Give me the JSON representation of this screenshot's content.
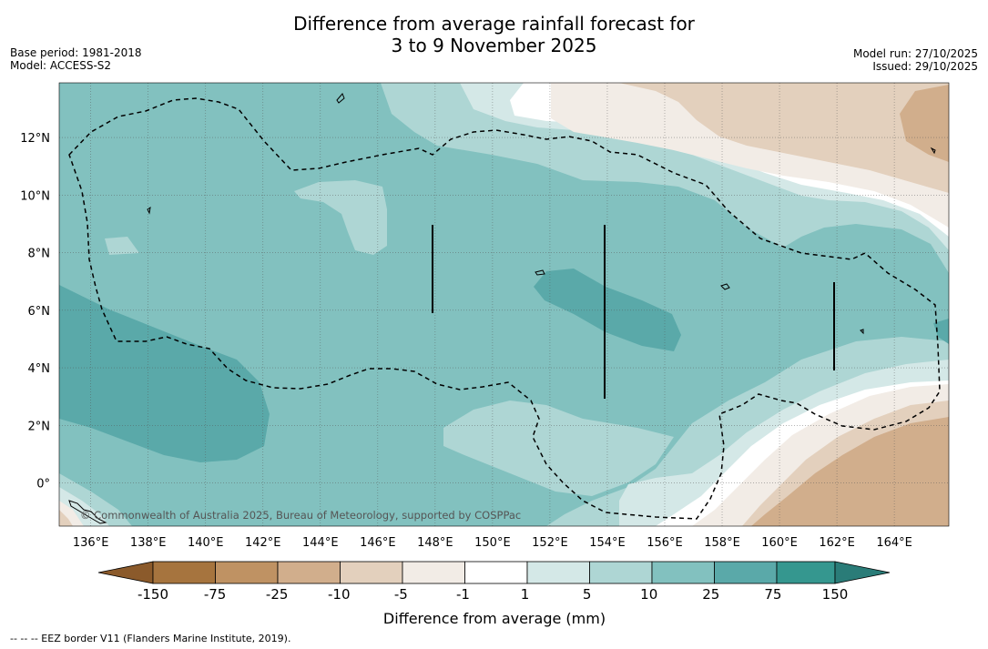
{
  "title": {
    "line1": "Difference from average rainfall forecast for",
    "line2": "3 to 9 November 2025"
  },
  "meta_left": {
    "base_period": "Base period: 1981-2018",
    "model": "Model: ACCESS-S2"
  },
  "meta_right": {
    "model_run": "Model run: 27/10/2025",
    "issued": "Issued: 29/10/2025"
  },
  "map": {
    "copyright": "© Commonwealth of Australia 2025, Bureau of Meteorology, supported by COSPPac",
    "lon_labels": [
      "136°E",
      "138°E",
      "140°E",
      "142°E",
      "144°E",
      "146°E",
      "148°E",
      "150°E",
      "152°E",
      "154°E",
      "156°E",
      "158°E",
      "160°E",
      "162°E",
      "164°E"
    ],
    "lat_labels": [
      "12°N",
      "10°N",
      "8°N",
      "6°N",
      "4°N",
      "2°N",
      "0°"
    ],
    "lon_range": [
      134.9,
      165.9
    ],
    "lat_range": [
      -1.5,
      13.9
    ]
  },
  "legend": {
    "title": "Difference from average (mm)",
    "tick_labels": [
      "-150",
      "-75",
      "-25",
      "-10",
      "-5",
      "-1",
      "1",
      "5",
      "10",
      "25",
      "75",
      "150"
    ],
    "colors": {
      "low_arrow": "#8b5a2b",
      "c_m150_m75": "#a6743e",
      "c_m75_m25": "#bf9263",
      "c_m25_m10": "#d1ae8c",
      "c_m10_m5": "#e3d0bd",
      "c_m5_m1": "#f2ece6",
      "c_m1_1": "#ffffff",
      "c_1_5": "#d4e8e7",
      "c_5_10": "#aed6d4",
      "c_10_25": "#82c1bf",
      "c_25_75": "#5aa9a9",
      "c_75_150": "#35978f",
      "high_arrow": "#2a7c78"
    }
  },
  "footer": {
    "eez_note": "--  --  -- EEZ border V11 (Flanders Marine Institute, 2019)."
  }
}
